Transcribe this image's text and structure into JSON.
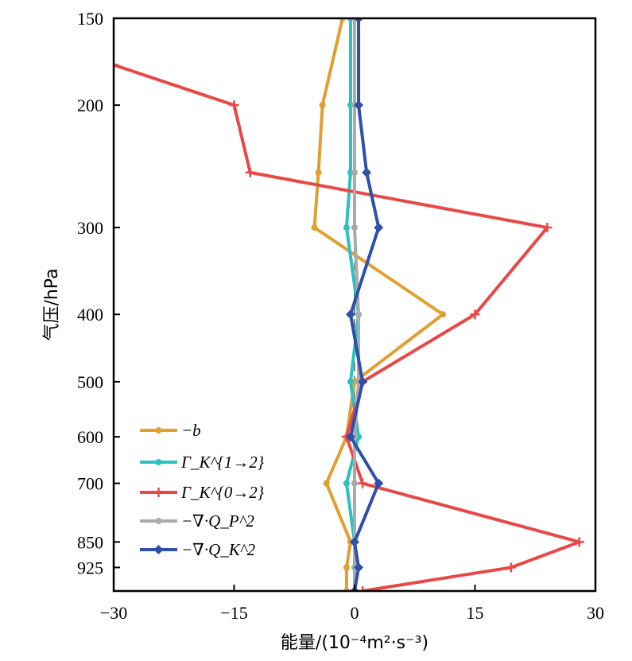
{
  "chart_data": {
    "type": "line",
    "ylabel": "气压/hPa",
    "xlabel": "能量/(10⁻⁴m²·s⁻³)",
    "xlim": [
      -30,
      30
    ],
    "xticks": [
      "−30",
      "−15",
      "0",
      "15",
      "30"
    ],
    "xtick_values": [
      -30,
      -15,
      0,
      15,
      30
    ],
    "ylim": [
      150,
      1000
    ],
    "yscale": "log",
    "yticks": [
      "150",
      "200",
      "300",
      "400",
      "500",
      "600",
      "700",
      "850",
      "925"
    ],
    "ytick_values": [
      150,
      200,
      300,
      400,
      500,
      600,
      700,
      850,
      925
    ],
    "grid": false,
    "legend_position": "lower-left",
    "zero_line": "dashed gray",
    "series": [
      {
        "name": "−b",
        "color": "#E0A030",
        "marker": "circle",
        "y": [
          150,
          200,
          250,
          300,
          400,
          500,
          600,
          700,
          850,
          925,
          1000
        ],
        "values": [
          -1.5,
          -4.0,
          -4.5,
          -5.0,
          11.0,
          0.0,
          -1.0,
          -3.5,
          -0.5,
          -1.0,
          -1.0
        ]
      },
      {
        "name": "Γ_K^{1→2}",
        "color": "#2CC0C0",
        "marker": "circle",
        "y": [
          150,
          200,
          250,
          300,
          400,
          500,
          600,
          700,
          850,
          925,
          1000
        ],
        "values": [
          -0.5,
          -0.5,
          -0.5,
          -1.0,
          0.5,
          -0.5,
          0.5,
          -1.0,
          0.0,
          0.0,
          0.0
        ]
      },
      {
        "name": "Γ_K^{0→2}",
        "color": "#E84848",
        "marker": "plus",
        "y": [
          175,
          200,
          250,
          300,
          400,
          500,
          600,
          700,
          850,
          925,
          1000
        ],
        "values": [
          -30.0,
          -15.0,
          -13.0,
          24.0,
          15.0,
          1.0,
          -1.0,
          1.0,
          28.0,
          19.5,
          1.0
        ]
      },
      {
        "name": "−∇·Q_P^2",
        "color": "#AAAAAA",
        "marker": "circle",
        "y": [
          150,
          200,
          250,
          300,
          400,
          500,
          600,
          700,
          850,
          925,
          1000
        ],
        "values": [
          0.0,
          0.0,
          0.0,
          0.0,
          0.5,
          0.5,
          0.0,
          0.0,
          0.0,
          0.0,
          0.0
        ]
      },
      {
        "name": "−∇·Q_K^2",
        "color": "#2F4FA8",
        "marker": "diamond",
        "y": [
          150,
          200,
          250,
          300,
          400,
          500,
          600,
          700,
          850,
          925,
          1000
        ],
        "values": [
          0.5,
          0.5,
          1.5,
          3.0,
          -0.5,
          1.0,
          -0.5,
          3.0,
          0.0,
          0.5,
          0.0
        ]
      }
    ]
  }
}
